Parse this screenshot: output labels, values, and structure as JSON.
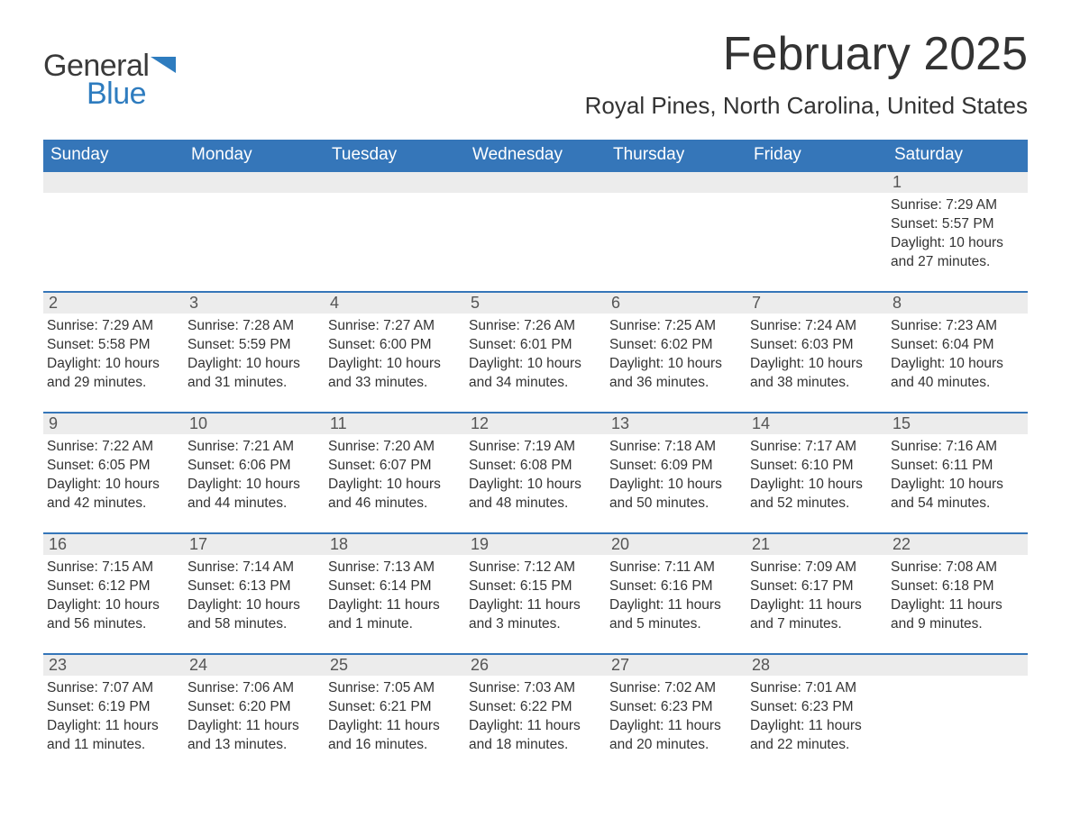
{
  "brand": {
    "word1": "General",
    "word2": "Blue",
    "icon_color": "#2e7cbf"
  },
  "title": "February 2025",
  "location": "Royal Pines, North Carolina, United States",
  "colors": {
    "header_bg": "#3576b9",
    "band_bg": "#ececec",
    "band_border": "#3576b9",
    "text": "#333333"
  },
  "weekdays": [
    "Sunday",
    "Monday",
    "Tuesday",
    "Wednesday",
    "Thursday",
    "Friday",
    "Saturday"
  ],
  "weeks": [
    [
      {
        "day": "",
        "sunrise": "",
        "sunset": "",
        "daylight": ""
      },
      {
        "day": "",
        "sunrise": "",
        "sunset": "",
        "daylight": ""
      },
      {
        "day": "",
        "sunrise": "",
        "sunset": "",
        "daylight": ""
      },
      {
        "day": "",
        "sunrise": "",
        "sunset": "",
        "daylight": ""
      },
      {
        "day": "",
        "sunrise": "",
        "sunset": "",
        "daylight": ""
      },
      {
        "day": "",
        "sunrise": "",
        "sunset": "",
        "daylight": ""
      },
      {
        "day": "1",
        "sunrise": "Sunrise: 7:29 AM",
        "sunset": "Sunset: 5:57 PM",
        "daylight": "Daylight: 10 hours and 27 minutes."
      }
    ],
    [
      {
        "day": "2",
        "sunrise": "Sunrise: 7:29 AM",
        "sunset": "Sunset: 5:58 PM",
        "daylight": "Daylight: 10 hours and 29 minutes."
      },
      {
        "day": "3",
        "sunrise": "Sunrise: 7:28 AM",
        "sunset": "Sunset: 5:59 PM",
        "daylight": "Daylight: 10 hours and 31 minutes."
      },
      {
        "day": "4",
        "sunrise": "Sunrise: 7:27 AM",
        "sunset": "Sunset: 6:00 PM",
        "daylight": "Daylight: 10 hours and 33 minutes."
      },
      {
        "day": "5",
        "sunrise": "Sunrise: 7:26 AM",
        "sunset": "Sunset: 6:01 PM",
        "daylight": "Daylight: 10 hours and 34 minutes."
      },
      {
        "day": "6",
        "sunrise": "Sunrise: 7:25 AM",
        "sunset": "Sunset: 6:02 PM",
        "daylight": "Daylight: 10 hours and 36 minutes."
      },
      {
        "day": "7",
        "sunrise": "Sunrise: 7:24 AM",
        "sunset": "Sunset: 6:03 PM",
        "daylight": "Daylight: 10 hours and 38 minutes."
      },
      {
        "day": "8",
        "sunrise": "Sunrise: 7:23 AM",
        "sunset": "Sunset: 6:04 PM",
        "daylight": "Daylight: 10 hours and 40 minutes."
      }
    ],
    [
      {
        "day": "9",
        "sunrise": "Sunrise: 7:22 AM",
        "sunset": "Sunset: 6:05 PM",
        "daylight": "Daylight: 10 hours and 42 minutes."
      },
      {
        "day": "10",
        "sunrise": "Sunrise: 7:21 AM",
        "sunset": "Sunset: 6:06 PM",
        "daylight": "Daylight: 10 hours and 44 minutes."
      },
      {
        "day": "11",
        "sunrise": "Sunrise: 7:20 AM",
        "sunset": "Sunset: 6:07 PM",
        "daylight": "Daylight: 10 hours and 46 minutes."
      },
      {
        "day": "12",
        "sunrise": "Sunrise: 7:19 AM",
        "sunset": "Sunset: 6:08 PM",
        "daylight": "Daylight: 10 hours and 48 minutes."
      },
      {
        "day": "13",
        "sunrise": "Sunrise: 7:18 AM",
        "sunset": "Sunset: 6:09 PM",
        "daylight": "Daylight: 10 hours and 50 minutes."
      },
      {
        "day": "14",
        "sunrise": "Sunrise: 7:17 AM",
        "sunset": "Sunset: 6:10 PM",
        "daylight": "Daylight: 10 hours and 52 minutes."
      },
      {
        "day": "15",
        "sunrise": "Sunrise: 7:16 AM",
        "sunset": "Sunset: 6:11 PM",
        "daylight": "Daylight: 10 hours and 54 minutes."
      }
    ],
    [
      {
        "day": "16",
        "sunrise": "Sunrise: 7:15 AM",
        "sunset": "Sunset: 6:12 PM",
        "daylight": "Daylight: 10 hours and 56 minutes."
      },
      {
        "day": "17",
        "sunrise": "Sunrise: 7:14 AM",
        "sunset": "Sunset: 6:13 PM",
        "daylight": "Daylight: 10 hours and 58 minutes."
      },
      {
        "day": "18",
        "sunrise": "Sunrise: 7:13 AM",
        "sunset": "Sunset: 6:14 PM",
        "daylight": "Daylight: 11 hours and 1 minute."
      },
      {
        "day": "19",
        "sunrise": "Sunrise: 7:12 AM",
        "sunset": "Sunset: 6:15 PM",
        "daylight": "Daylight: 11 hours and 3 minutes."
      },
      {
        "day": "20",
        "sunrise": "Sunrise: 7:11 AM",
        "sunset": "Sunset: 6:16 PM",
        "daylight": "Daylight: 11 hours and 5 minutes."
      },
      {
        "day": "21",
        "sunrise": "Sunrise: 7:09 AM",
        "sunset": "Sunset: 6:17 PM",
        "daylight": "Daylight: 11 hours and 7 minutes."
      },
      {
        "day": "22",
        "sunrise": "Sunrise: 7:08 AM",
        "sunset": "Sunset: 6:18 PM",
        "daylight": "Daylight: 11 hours and 9 minutes."
      }
    ],
    [
      {
        "day": "23",
        "sunrise": "Sunrise: 7:07 AM",
        "sunset": "Sunset: 6:19 PM",
        "daylight": "Daylight: 11 hours and 11 minutes."
      },
      {
        "day": "24",
        "sunrise": "Sunrise: 7:06 AM",
        "sunset": "Sunset: 6:20 PM",
        "daylight": "Daylight: 11 hours and 13 minutes."
      },
      {
        "day": "25",
        "sunrise": "Sunrise: 7:05 AM",
        "sunset": "Sunset: 6:21 PM",
        "daylight": "Daylight: 11 hours and 16 minutes."
      },
      {
        "day": "26",
        "sunrise": "Sunrise: 7:03 AM",
        "sunset": "Sunset: 6:22 PM",
        "daylight": "Daylight: 11 hours and 18 minutes."
      },
      {
        "day": "27",
        "sunrise": "Sunrise: 7:02 AM",
        "sunset": "Sunset: 6:23 PM",
        "daylight": "Daylight: 11 hours and 20 minutes."
      },
      {
        "day": "28",
        "sunrise": "Sunrise: 7:01 AM",
        "sunset": "Sunset: 6:23 PM",
        "daylight": "Daylight: 11 hours and 22 minutes."
      },
      {
        "day": "",
        "sunrise": "",
        "sunset": "",
        "daylight": ""
      }
    ]
  ]
}
